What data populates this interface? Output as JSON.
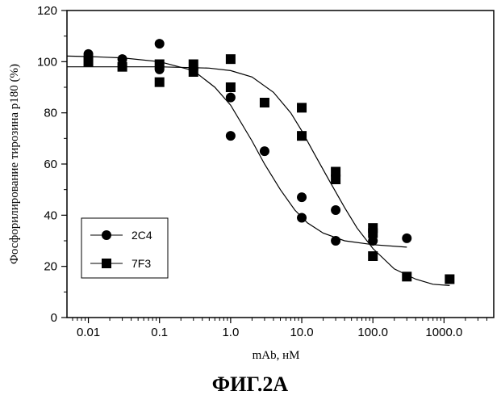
{
  "figure": {
    "caption": "ФИГ.2А"
  },
  "chart_data": {
    "type": "scatter",
    "title": "",
    "xlabel": "mAb, нМ",
    "ylabel": "Фосфорилирование тирозина p180 (%)",
    "xscale": "log",
    "xlim": [
      0.005,
      5000
    ],
    "ylim": [
      0,
      120
    ],
    "xticks": [
      {
        "value": 0.01,
        "label": "0.01"
      },
      {
        "value": 0.1,
        "label": "0.1"
      },
      {
        "value": 1,
        "label": "1.0"
      },
      {
        "value": 10,
        "label": "10.0"
      },
      {
        "value": 100,
        "label": "100.0"
      },
      {
        "value": 1000,
        "label": "1000.0"
      }
    ],
    "yticks": [
      {
        "value": 0,
        "label": "0"
      },
      {
        "value": 20,
        "label": "20"
      },
      {
        "value": 40,
        "label": "40"
      },
      {
        "value": 60,
        "label": "60"
      },
      {
        "value": 80,
        "label": "80"
      },
      {
        "value": 100,
        "label": "100"
      },
      {
        "value": 120,
        "label": "120"
      }
    ],
    "grid": false,
    "legend": {
      "position": "bottom-left"
    },
    "series": [
      {
        "name": "2C4",
        "marker": "circle",
        "color": "#000000",
        "points": [
          [
            0.01,
            103
          ],
          [
            0.01,
            102
          ],
          [
            0.03,
            101
          ],
          [
            0.1,
            107
          ],
          [
            0.1,
            97
          ],
          [
            0.3,
            97
          ],
          [
            1,
            86
          ],
          [
            1,
            71
          ],
          [
            3,
            65
          ],
          [
            10,
            47
          ],
          [
            10,
            39
          ],
          [
            30,
            42
          ],
          [
            30,
            30
          ],
          [
            100,
            30
          ],
          [
            300,
            31
          ]
        ],
        "fit": [
          [
            0.005,
            102.2
          ],
          [
            0.01,
            102.0
          ],
          [
            0.03,
            101.5
          ],
          [
            0.1,
            100.0
          ],
          [
            0.3,
            96.5
          ],
          [
            0.6,
            90.0
          ],
          [
            1,
            83.0
          ],
          [
            2,
            69.0
          ],
          [
            3,
            60.0
          ],
          [
            5,
            50.0
          ],
          [
            8,
            42.0
          ],
          [
            12,
            37.0
          ],
          [
            20,
            33.0
          ],
          [
            40,
            30.0
          ],
          [
            100,
            28.5
          ],
          [
            300,
            27.5
          ]
        ]
      },
      {
        "name": "7F3",
        "marker": "square",
        "color": "#000000",
        "points": [
          [
            0.01,
            100
          ],
          [
            0.03,
            98
          ],
          [
            0.1,
            99
          ],
          [
            0.1,
            92
          ],
          [
            0.3,
            99
          ],
          [
            0.3,
            96
          ],
          [
            1,
            101
          ],
          [
            1,
            90
          ],
          [
            3,
            84
          ],
          [
            10,
            82
          ],
          [
            10,
            71
          ],
          [
            30,
            57
          ],
          [
            30,
            54
          ],
          [
            100,
            35
          ],
          [
            100,
            33
          ],
          [
            100,
            24
          ],
          [
            300,
            16
          ],
          [
            1200,
            15
          ]
        ],
        "fit": [
          [
            0.005,
            98.0
          ],
          [
            0.1,
            98.0
          ],
          [
            0.5,
            97.5
          ],
          [
            1,
            96.5
          ],
          [
            2,
            94.0
          ],
          [
            4,
            88.0
          ],
          [
            7,
            80.0
          ],
          [
            10,
            73.0
          ],
          [
            15,
            64.0
          ],
          [
            25,
            53.0
          ],
          [
            40,
            43.0
          ],
          [
            60,
            35.0
          ],
          [
            100,
            27.0
          ],
          [
            200,
            19.0
          ],
          [
            400,
            15.0
          ],
          [
            700,
            13.0
          ],
          [
            1200,
            12.5
          ]
        ]
      }
    ]
  }
}
